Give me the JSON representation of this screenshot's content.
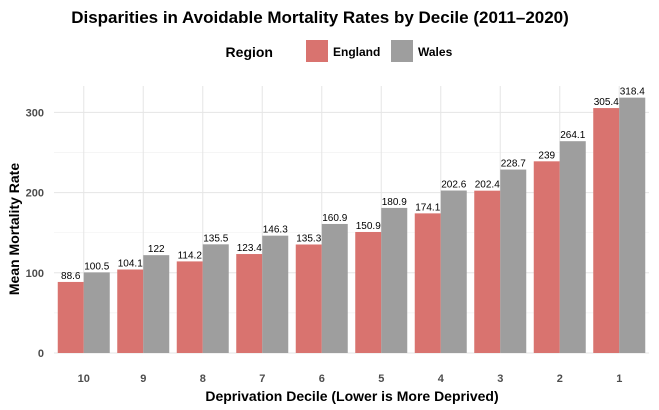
{
  "chart_data": {
    "type": "bar",
    "title": "Disparities in Avoidable Mortality Rates by Decile (2011–2020)",
    "xlabel": "Deprivation Decile (Lower is More Deprived)",
    "ylabel": "Mean Mortality Rate",
    "legend_title": "Region",
    "legend_position": "top",
    "grid": true,
    "ylim": [
      0,
      330
    ],
    "yticks": [
      0,
      100,
      200,
      300
    ],
    "categories": [
      "10",
      "9",
      "8",
      "7",
      "6",
      "5",
      "4",
      "3",
      "2",
      "1"
    ],
    "series": [
      {
        "name": "England",
        "color": "#d9736f",
        "values": [
          88.6,
          104.1,
          114.2,
          123.4,
          135.3,
          150.9,
          174.1,
          202.4,
          239,
          305.4
        ]
      },
      {
        "name": "Wales",
        "color": "#9e9e9e",
        "values": [
          100.5,
          122,
          135.5,
          146.3,
          160.9,
          180.9,
          202.6,
          228.7,
          264.1,
          318.4
        ]
      }
    ]
  }
}
